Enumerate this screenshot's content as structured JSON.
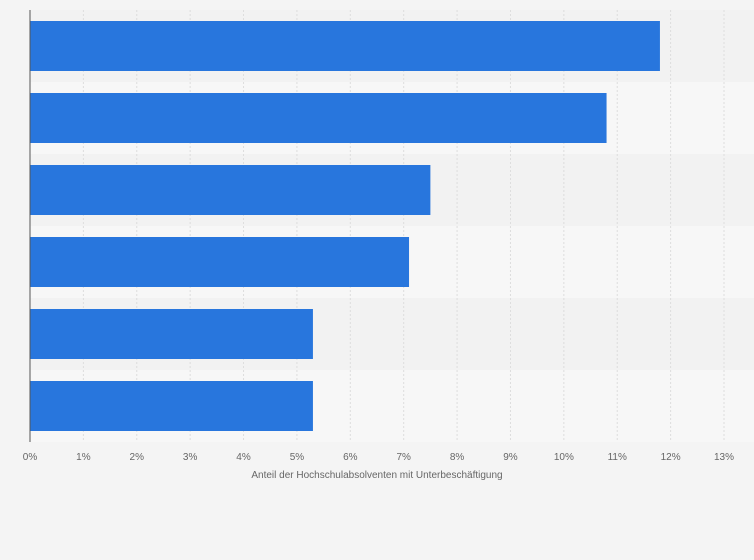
{
  "chart_data": {
    "type": "bar",
    "orientation": "horizontal",
    "categories": [
      "",
      "",
      "",
      "",
      "",
      ""
    ],
    "values": [
      11.8,
      10.8,
      7.5,
      7.1,
      5.3,
      5.3
    ],
    "xlabel": "Anteil der Hochschulabsolventen mit Unterbeschäftigung",
    "ylabel": "",
    "xlim": [
      0,
      13
    ],
    "x_ticks": [
      "0%",
      "1%",
      "2%",
      "3%",
      "4%",
      "5%",
      "6%",
      "7%",
      "8%",
      "9%",
      "10%",
      "11%",
      "12%",
      "13%"
    ],
    "grid": "vertical",
    "legend": "none"
  },
  "colors": {
    "bar": "#2876dd",
    "background": "#f4f4f4",
    "band_light": "#f7f7f7",
    "band_dark": "#f2f2f2",
    "grid": "#dddddd",
    "axis": "#555555"
  }
}
